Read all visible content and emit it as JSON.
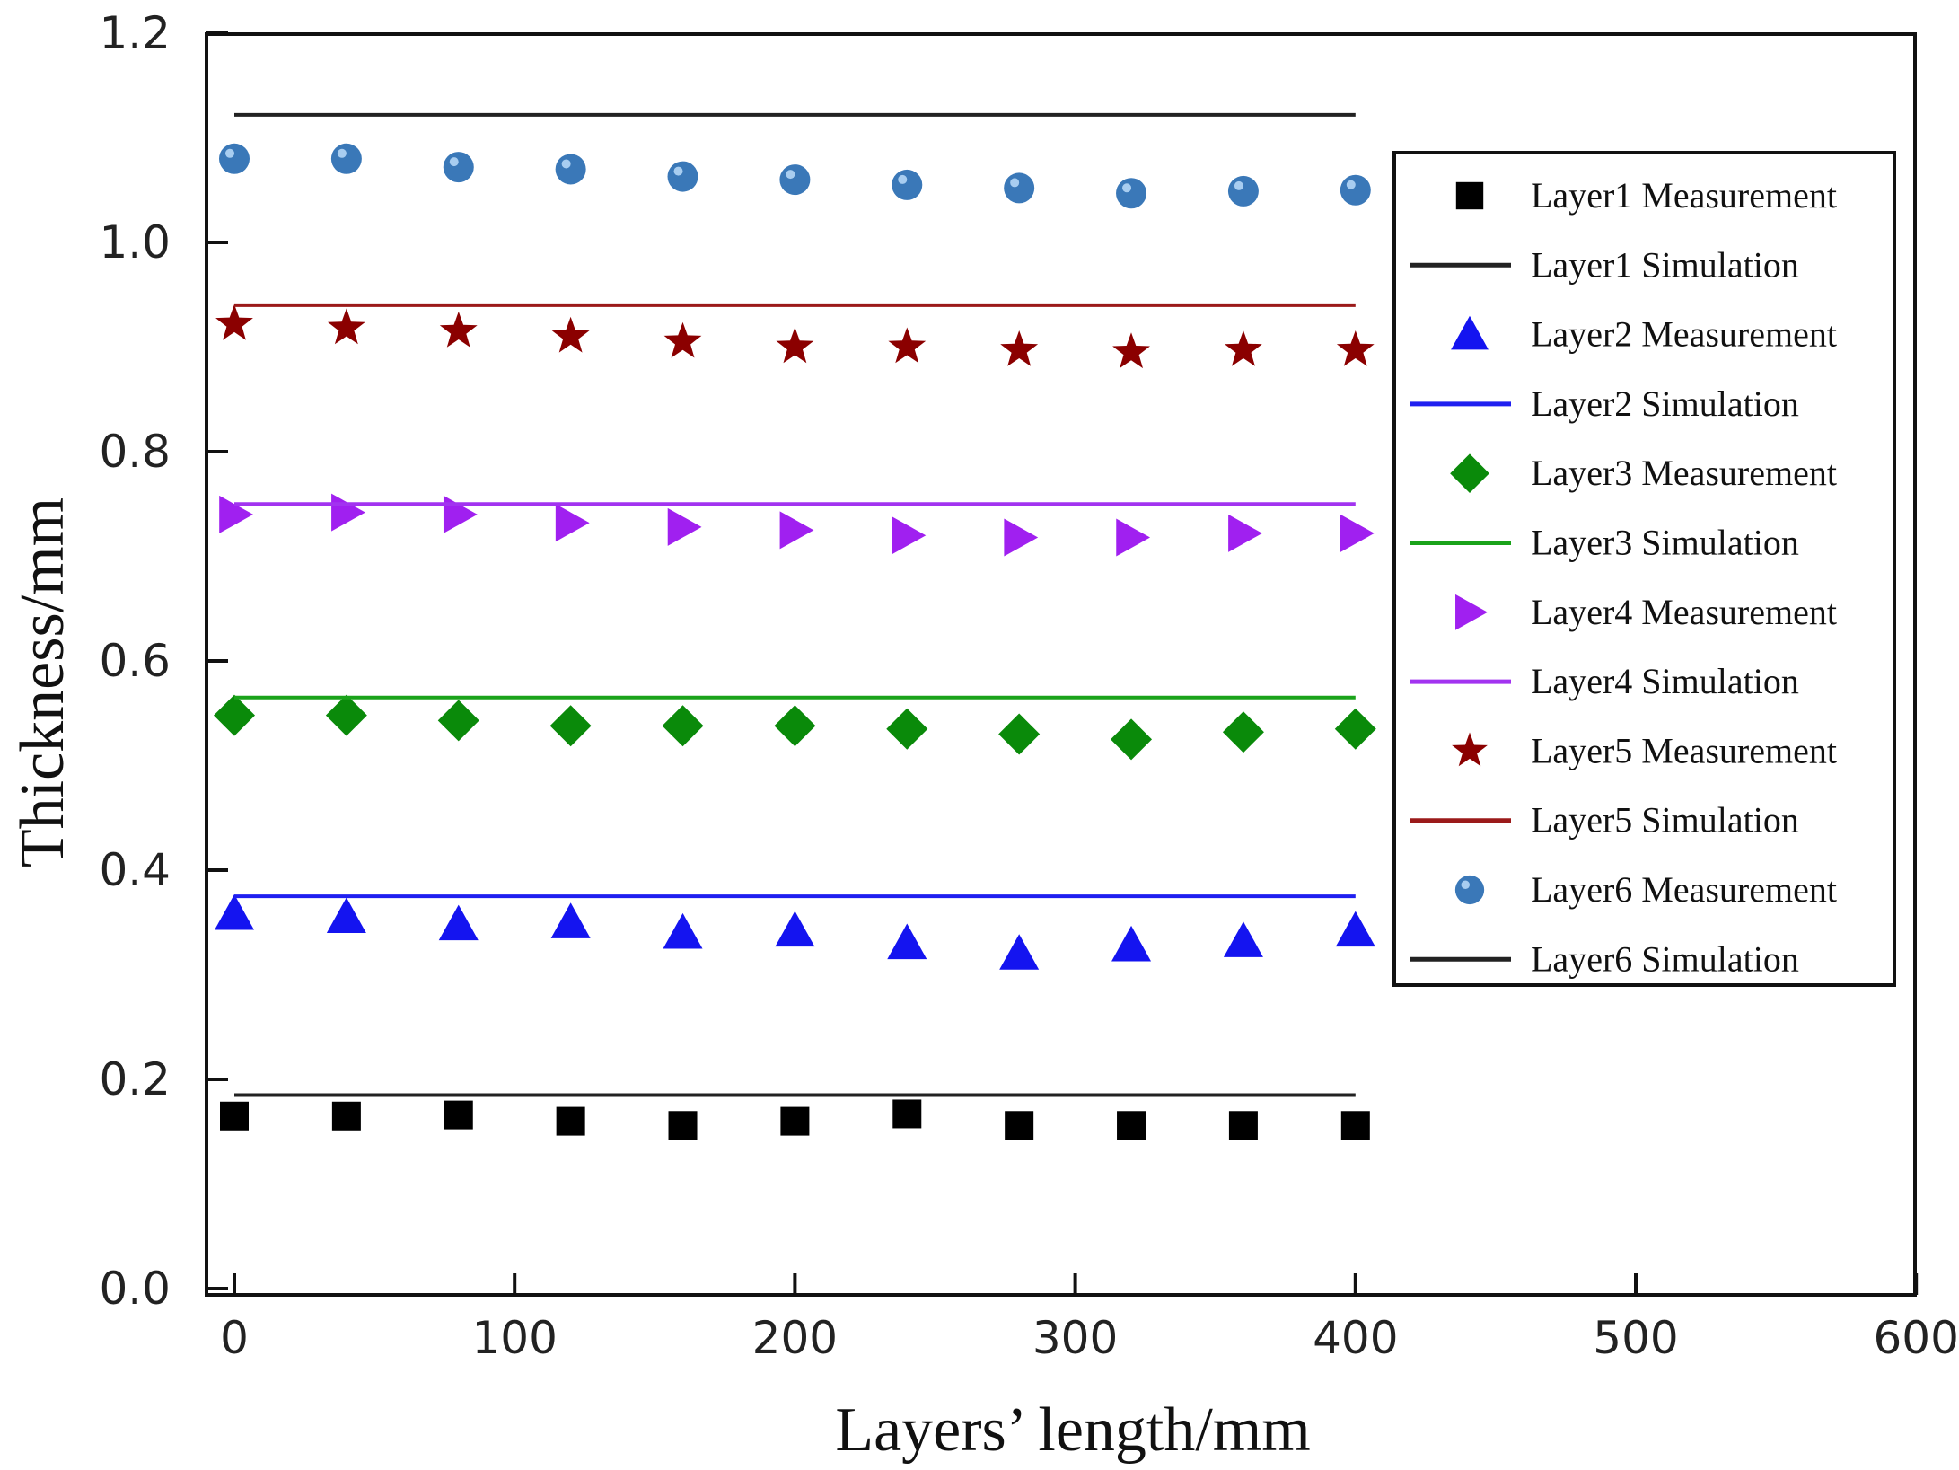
{
  "chart_data": {
    "type": "scatter",
    "title": "",
    "xlabel": "Layers’ length/mm",
    "ylabel": "Thickness/mm",
    "xlim": [
      -10,
      600
    ],
    "ylim": [
      0,
      1.2
    ],
    "xticks": [
      "0",
      "100",
      "200",
      "300",
      "400",
      "500",
      "600"
    ],
    "yticks": [
      "0.0",
      "0.2",
      "0.4",
      "0.6",
      "0.8",
      "1.0",
      "1.2"
    ],
    "grid": false,
    "legend_position": "right",
    "x": [
      0,
      40,
      80,
      120,
      160,
      200,
      240,
      280,
      320,
      360,
      400
    ],
    "series": [
      {
        "name": "Layer1 Measurement",
        "kind": "markers",
        "marker": "square",
        "color": "#000000",
        "values": [
          0.165,
          0.165,
          0.166,
          0.16,
          0.156,
          0.16,
          0.167,
          0.156,
          0.156,
          0.156,
          0.156
        ]
      },
      {
        "name": "Layer1 Simulation",
        "kind": "line",
        "color": "#222222",
        "value": 0.185
      },
      {
        "name": "Layer2 Measurement",
        "kind": "markers",
        "marker": "triangle",
        "color": "#1414f0",
        "values": [
          0.358,
          0.355,
          0.348,
          0.35,
          0.34,
          0.342,
          0.33,
          0.32,
          0.328,
          0.332,
          0.342
        ]
      },
      {
        "name": "Layer2 Simulation",
        "kind": "line",
        "color": "#1f1ff0",
        "value": 0.375
      },
      {
        "name": "Layer3 Measurement",
        "kind": "markers",
        "marker": "diamond",
        "color": "#0a8a0a",
        "values": [
          0.548,
          0.548,
          0.543,
          0.538,
          0.538,
          0.538,
          0.535,
          0.53,
          0.525,
          0.532,
          0.535
        ]
      },
      {
        "name": "Layer3 Simulation",
        "kind": "line",
        "color": "#1aa31a",
        "value": 0.565
      },
      {
        "name": "Layer4 Measurement",
        "kind": "markers",
        "marker": "triangle-right",
        "color": "#a020f0",
        "values": [
          0.74,
          0.742,
          0.74,
          0.732,
          0.728,
          0.725,
          0.72,
          0.718,
          0.718,
          0.722,
          0.722
        ]
      },
      {
        "name": "Layer4 Simulation",
        "kind": "line",
        "color": "#a233f0",
        "value": 0.75
      },
      {
        "name": "Layer5 Measurement",
        "kind": "markers",
        "marker": "star",
        "color": "#8b0000",
        "values": [
          0.922,
          0.918,
          0.915,
          0.91,
          0.905,
          0.9,
          0.9,
          0.897,
          0.895,
          0.897,
          0.897
        ]
      },
      {
        "name": "Layer5 Simulation",
        "kind": "line",
        "color": "#9b1a1a",
        "value": 0.94
      },
      {
        "name": "Layer6 Measurement",
        "kind": "markers",
        "marker": "circle",
        "color": "#3a78b8",
        "values": [
          1.08,
          1.08,
          1.072,
          1.07,
          1.063,
          1.06,
          1.055,
          1.052,
          1.047,
          1.049,
          1.05
        ]
      },
      {
        "name": "Layer6 Simulation",
        "kind": "line",
        "color": "#222222",
        "value": 1.122
      }
    ]
  }
}
